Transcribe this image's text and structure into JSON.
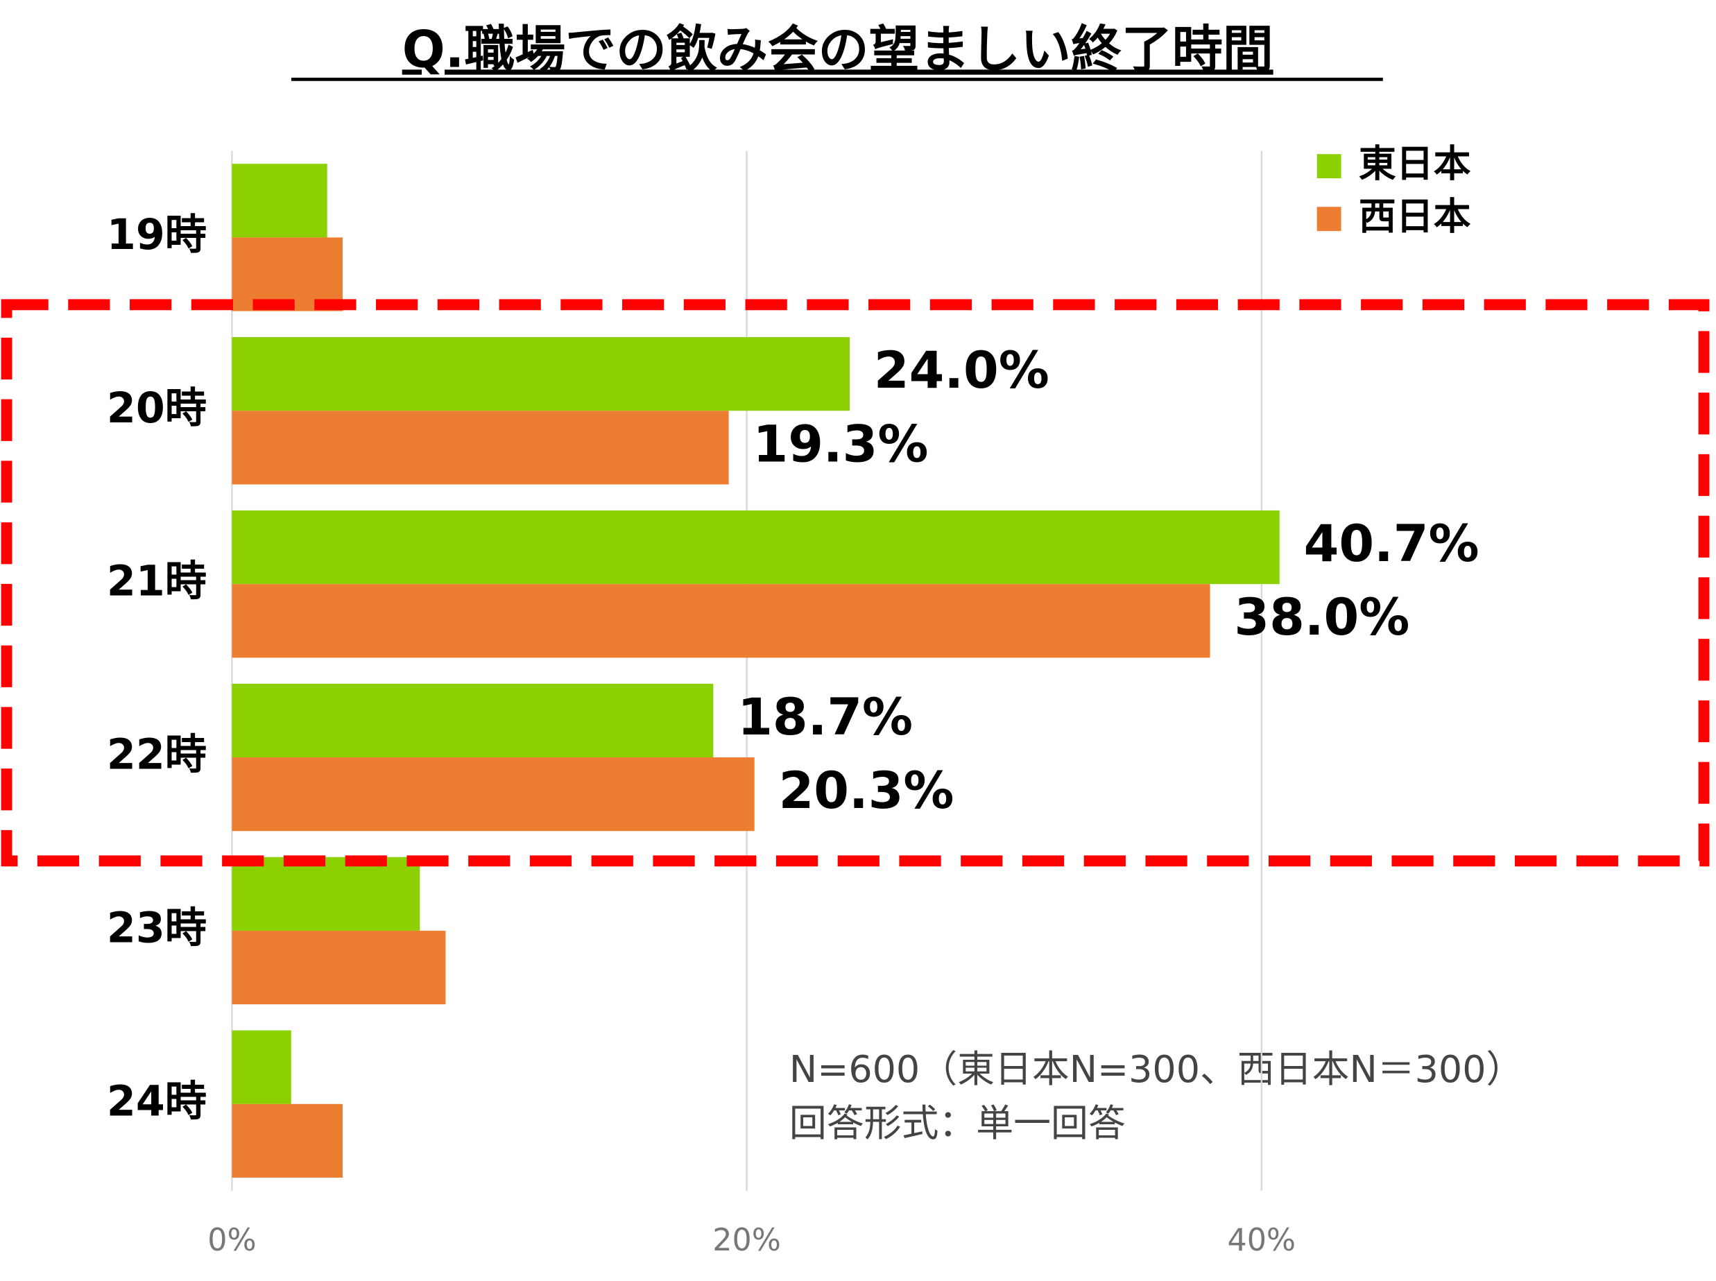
{
  "chart_data": {
    "type": "barh",
    "title": "Q.職場での飲み会の望ましい終了時間",
    "categories": [
      "19時",
      "20時",
      "21時",
      "22時",
      "23時",
      "24時"
    ],
    "series": [
      {
        "name": "東日本",
        "color": "#8cd000",
        "values": [
          3.7,
          24.0,
          40.7,
          18.7,
          7.3,
          2.3
        ],
        "value_labels": [
          null,
          "24.0%",
          "40.7%",
          "18.7%",
          null,
          null
        ]
      },
      {
        "name": "西日本",
        "color": "#ed7d31",
        "values": [
          4.3,
          19.3,
          38.0,
          20.3,
          8.3,
          4.3
        ],
        "value_labels": [
          null,
          "19.3%",
          "38.0%",
          "20.3%",
          null,
          null
        ]
      }
    ],
    "xlim": [
      0,
      57.4
    ],
    "xticks": [
      {
        "value": 0,
        "label": "0%"
      },
      {
        "value": 20,
        "label": "20%"
      },
      {
        "value": 40,
        "label": "40%"
      }
    ],
    "grid": true,
    "legend": "top-right",
    "notes": [
      "N=600（東日本N=300、西日本N＝300）",
      "回答形式：単一回答"
    ]
  }
}
